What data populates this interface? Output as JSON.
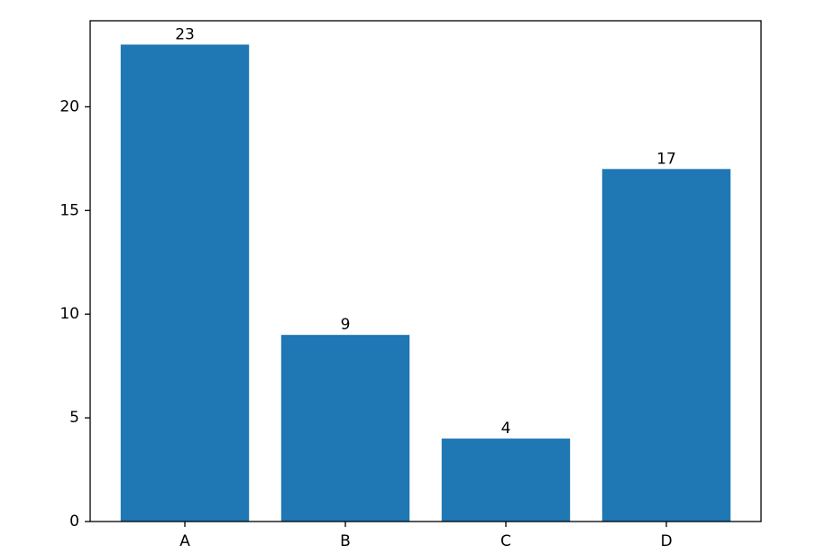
{
  "chart_data": {
    "type": "bar",
    "categories": [
      "A",
      "B",
      "C",
      "D"
    ],
    "values": [
      23,
      9,
      4,
      17
    ],
    "color": "#1f77b4",
    "ylim": [
      0,
      24.15
    ],
    "yticks": [
      0,
      5,
      10,
      15,
      20
    ],
    "grid": false
  }
}
